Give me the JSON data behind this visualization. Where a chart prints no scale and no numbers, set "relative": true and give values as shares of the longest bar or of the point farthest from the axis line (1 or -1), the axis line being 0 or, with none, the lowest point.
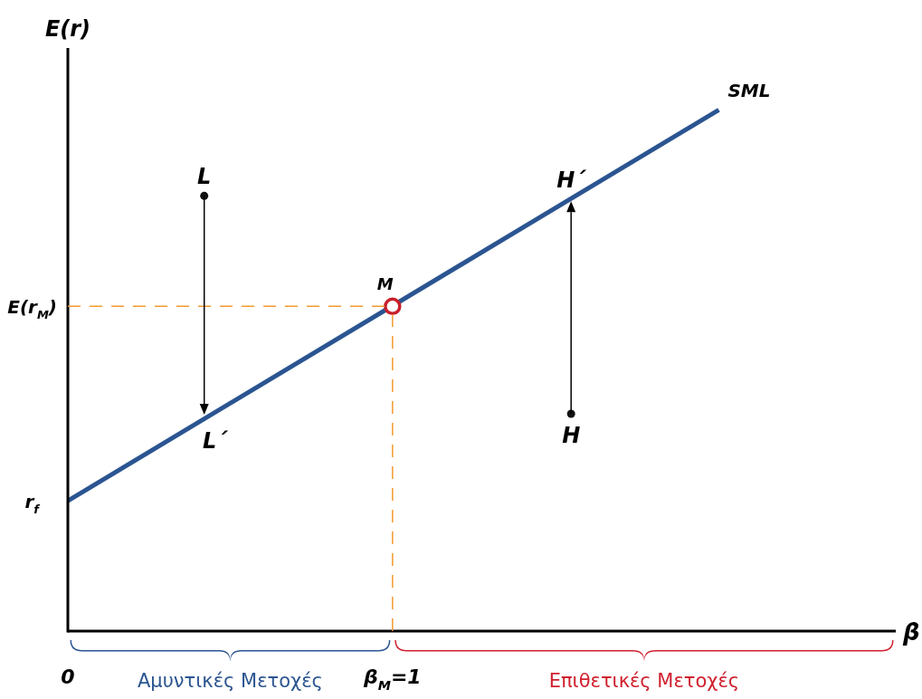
{
  "chart_data": {
    "type": "line",
    "relative": true,
    "xlabel": "β",
    "ylabel": "E(r)",
    "xlim": [
      0,
      2.55
    ],
    "xticks": [
      {
        "value": 0,
        "label": "0"
      },
      {
        "value": 1,
        "label": "β$_{M}$=1"
      }
    ],
    "legend": false,
    "tick_labels": "x",
    "series": [
      {
        "name": "SML",
        "color": "#2b5591",
        "x": [
          0,
          2.005
        ],
        "values": [
          0.25,
          1
        ]
      },
      {
        "name": "M",
        "type": "scatter",
        "marker": "circle",
        "color": "#c8202a",
        "x": [
          1
        ],
        "values": [
          0.623
        ]
      },
      {
        "name": "L",
        "type": "scatter",
        "color": "#111111",
        "x": [
          0.42
        ],
        "values": [
          0.835
        ]
      },
      {
        "name": "H",
        "type": "scatter",
        "color": "#111111",
        "x": [
          1.55
        ],
        "values": [
          0.417
        ]
      }
    ],
    "ref_lines": [
      {
        "axis": "y",
        "value": 0.623,
        "label": "E(r$_{M}$)",
        "color": "#f39a2e",
        "line_style": "dashed"
      },
      {
        "axis": "x",
        "value": 1,
        "color": "#f39a2e",
        "line_style": "dashed"
      }
    ],
    "annotations": [
      "Αμυντικές Μετοχές",
      "Επιθετικές Μετοχές",
      {
        "text": "L´",
        "x": 0.42,
        "y": 0.41
      },
      {
        "text": "H´",
        "x": 1.55,
        "y": 0.83
      },
      {
        "text": "r$_{f}$",
        "x": 0,
        "y": 0.25
      }
    ]
  }
}
